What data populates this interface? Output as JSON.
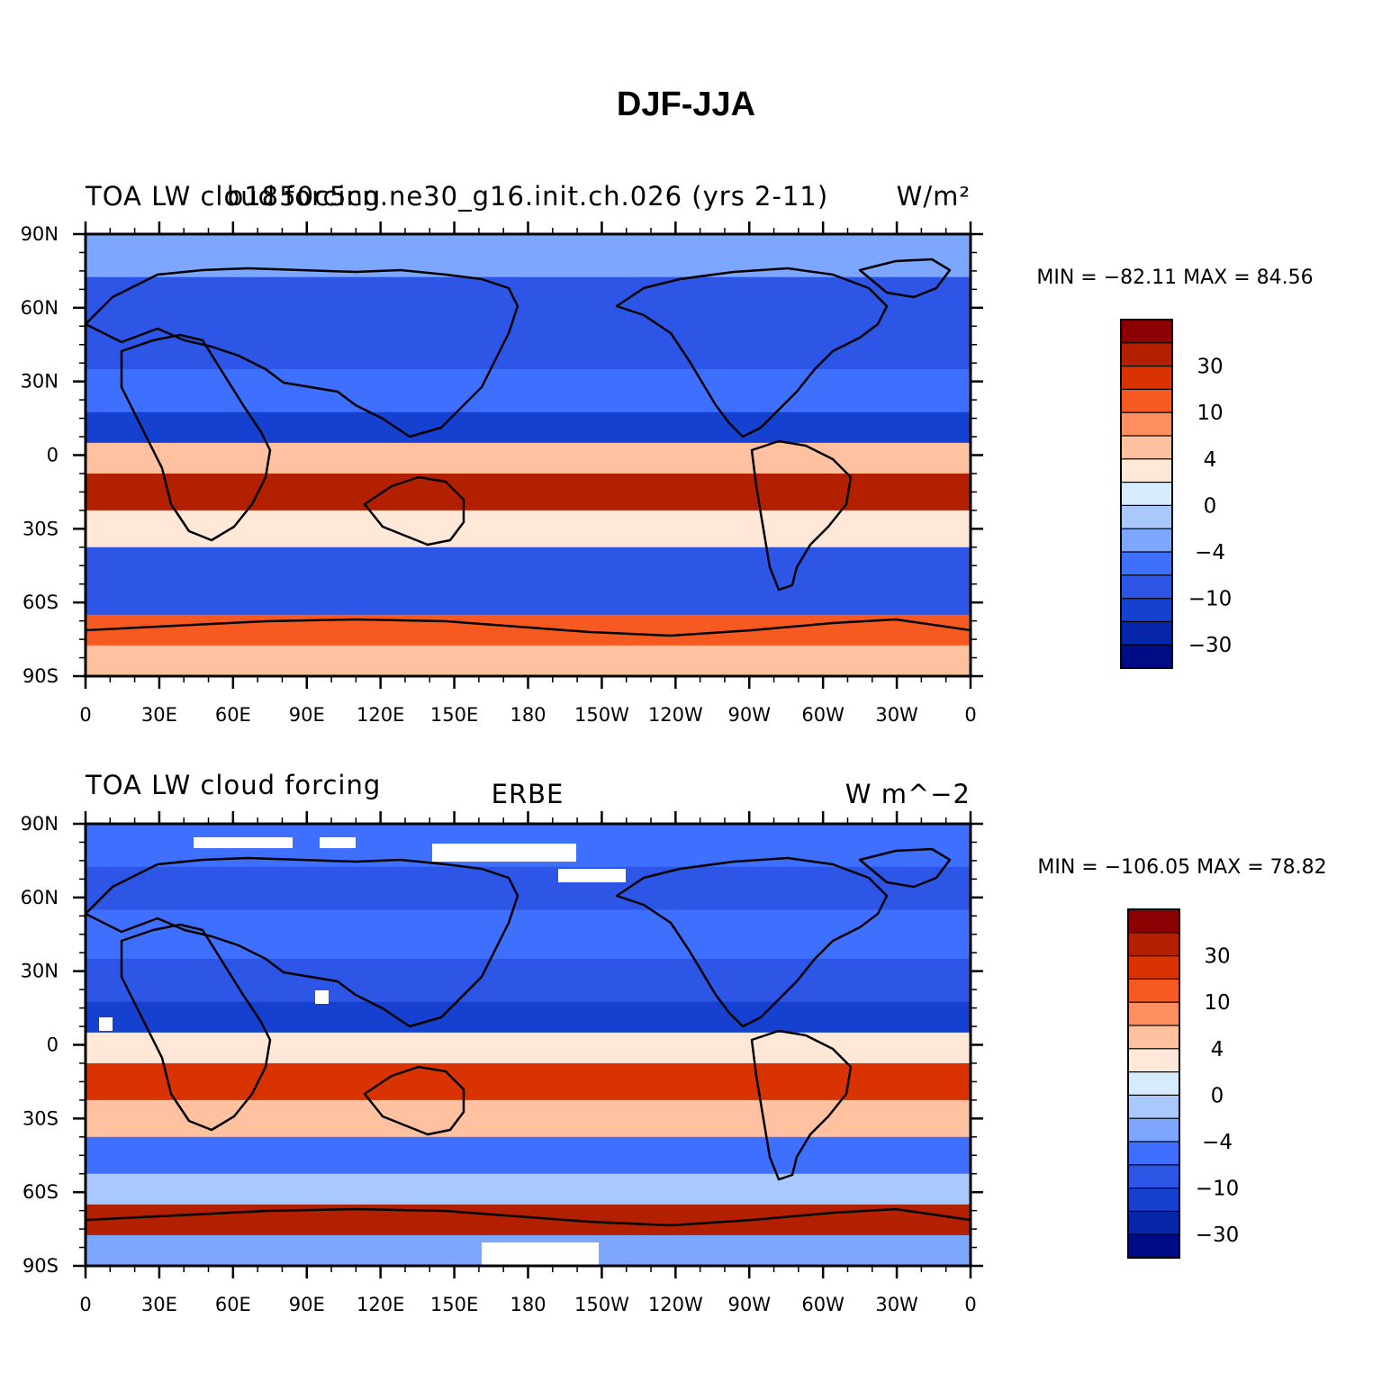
{
  "main_title": "DJF-JJA",
  "panels": [
    {
      "id": "model",
      "title_left": "TOA LW cloud forcing",
      "title_center": "b1850c5cn.ne30_g16.init.ch.026 (yrs 2-11)",
      "units": "W/m²",
      "min_max": "MIN = −82.11  MAX =  84.56",
      "colorbar_labels": [
        "30",
        "10",
        "4",
        "0",
        "−4",
        "−10",
        "−30"
      ]
    },
    {
      "id": "obs",
      "title_left": "TOA LW cloud forcing",
      "title_center": "ERBE",
      "units": "W m^−2",
      "min_max": "MIN = −106.05  MAX =  78.82",
      "colorbar_labels": [
        "30",
        "10",
        "4",
        "0",
        "−4",
        "−10",
        "−30"
      ]
    }
  ],
  "lat_labels": [
    "90N",
    "60N",
    "30N",
    "0",
    "30S",
    "60S",
    "90S"
  ],
  "lon_labels": [
    "0",
    "30E",
    "60E",
    "90E",
    "120E",
    "150E",
    "180",
    "150W",
    "120W",
    "90W",
    "60W",
    "30W",
    "0"
  ],
  "palette": [
    "#8b0000",
    "#b22000",
    "#d83300",
    "#f75a20",
    "#ff8f60",
    "#ffc1a0",
    "#ffe8d8",
    "#d7ebff",
    "#a9c8ff",
    "#7da6ff",
    "#3f6fff",
    "#2d56e6",
    "#1540d0",
    "#0526a8",
    "#000c86"
  ],
  "chart_data": {
    "type": "heatmap",
    "variable": "TOA LW cloud forcing",
    "season_difference": "DJF-JJA",
    "units": "W/m²",
    "contour_levels": [
      -40,
      -30,
      -20,
      -10,
      -6,
      -4,
      -2,
      0,
      2,
      4,
      6,
      10,
      20,
      30,
      40
    ],
    "x_range": [
      0,
      360
    ],
    "y_range": [
      -90,
      90
    ],
    "zonal_mean_bands": [
      {
        "latitude": 80,
        "model_value": -6,
        "obs_value": -10
      },
      {
        "latitude": 65,
        "model_value": -15,
        "obs_value": -15
      },
      {
        "latitude": 45,
        "model_value": -12,
        "obs_value": -10
      },
      {
        "latitude": 25,
        "model_value": -10,
        "obs_value": -12
      },
      {
        "latitude": 10,
        "model_value": -25,
        "obs_value": -30
      },
      {
        "latitude": 0,
        "model_value": 2,
        "obs_value": 0
      },
      {
        "latitude": -15,
        "model_value": 20,
        "obs_value": 18
      },
      {
        "latitude": -30,
        "model_value": 0,
        "obs_value": 2
      },
      {
        "latitude": -45,
        "model_value": -12,
        "obs_value": -8
      },
      {
        "latitude": -60,
        "model_value": -15,
        "obs_value": -4
      },
      {
        "latitude": -70,
        "model_value": 6,
        "obs_value": 25
      },
      {
        "latitude": -85,
        "model_value": 2,
        "obs_value": -6
      }
    ]
  }
}
